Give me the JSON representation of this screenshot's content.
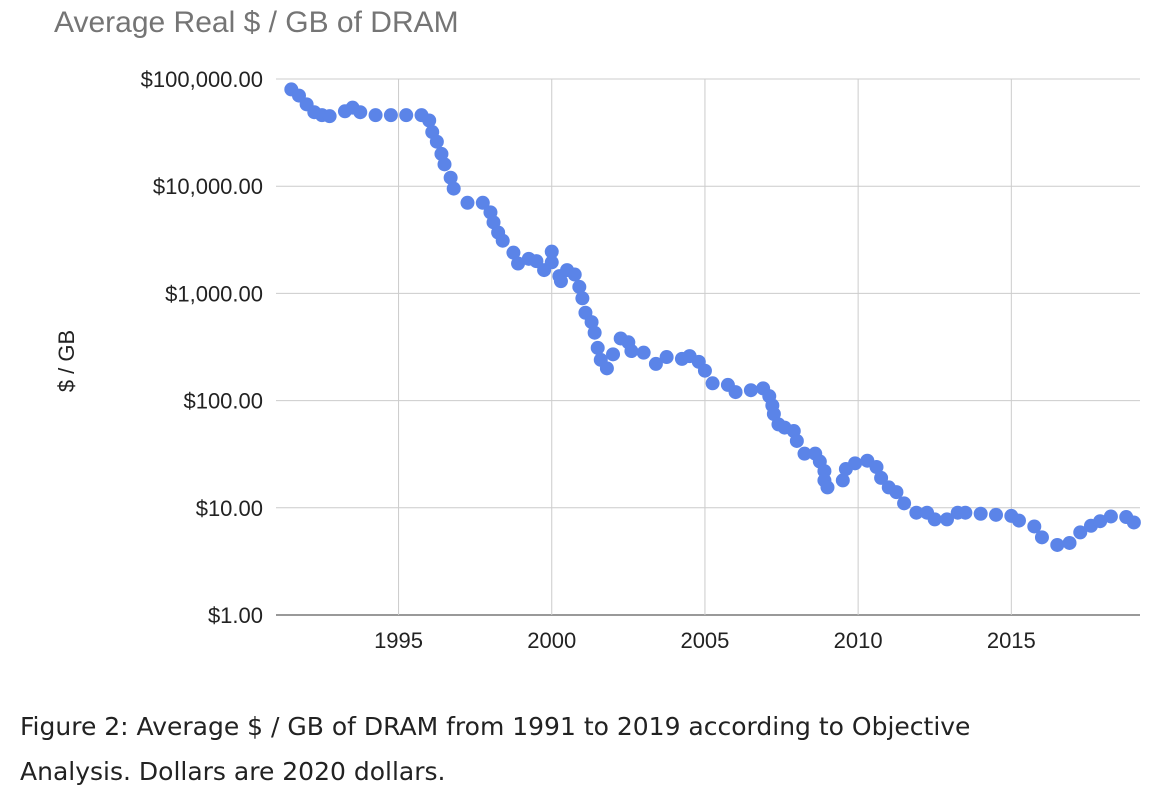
{
  "chart_data": {
    "type": "scatter",
    "title": "Average Real $ / GB of DRAM",
    "xlabel": "",
    "ylabel": "$ / GB",
    "y_scale": "log",
    "xlim": [
      1991.0,
      2019.2
    ],
    "ylim": [
      1,
      100000
    ],
    "x_ticks": [
      1995,
      2000,
      2005,
      2010,
      2015
    ],
    "x_tick_labels": [
      "1995",
      "2000",
      "2005",
      "2010",
      "2015"
    ],
    "y_ticks": [
      1,
      10,
      100,
      1000,
      10000,
      100000
    ],
    "y_tick_labels": [
      "$1.00",
      "$10.00",
      "$100.00",
      "$1,000.00",
      "$10,000.00",
      "$100,000.00"
    ],
    "grid": true,
    "legend": "none",
    "series": [
      {
        "color": "#5b84e8",
        "points": [
          [
            1991.5,
            80000
          ],
          [
            1991.75,
            70000
          ],
          [
            1992.0,
            58000
          ],
          [
            1992.25,
            49000
          ],
          [
            1992.5,
            46000
          ],
          [
            1992.75,
            45000
          ],
          [
            1993.25,
            50000
          ],
          [
            1993.5,
            54000
          ],
          [
            1993.75,
            49000
          ],
          [
            1994.25,
            46000
          ],
          [
            1994.75,
            46000
          ],
          [
            1995.25,
            46000
          ],
          [
            1995.75,
            46000
          ],
          [
            1996.0,
            41000
          ],
          [
            1996.1,
            32000
          ],
          [
            1996.25,
            26000
          ],
          [
            1996.4,
            20000
          ],
          [
            1996.5,
            16000
          ],
          [
            1996.7,
            12000
          ],
          [
            1996.8,
            9500
          ],
          [
            1997.25,
            7000
          ],
          [
            1997.75,
            7000
          ],
          [
            1998.0,
            5700
          ],
          [
            1998.1,
            4600
          ],
          [
            1998.25,
            3700
          ],
          [
            1998.4,
            3100
          ],
          [
            1998.75,
            2400
          ],
          [
            1998.9,
            1900
          ],
          [
            1999.25,
            2100
          ],
          [
            1999.5,
            2000
          ],
          [
            1999.75,
            1650
          ],
          [
            2000.0,
            1950
          ],
          [
            2000.0,
            2450
          ],
          [
            2000.25,
            1450
          ],
          [
            2000.3,
            1300
          ],
          [
            2000.5,
            1650
          ],
          [
            2000.75,
            1500
          ],
          [
            2000.9,
            1150
          ],
          [
            2001.0,
            900
          ],
          [
            2001.1,
            660
          ],
          [
            2001.3,
            540
          ],
          [
            2001.4,
            430
          ],
          [
            2001.5,
            310
          ],
          [
            2001.6,
            240
          ],
          [
            2001.8,
            200
          ],
          [
            2002.0,
            270
          ],
          [
            2002.25,
            380
          ],
          [
            2002.5,
            350
          ],
          [
            2002.6,
            290
          ],
          [
            2003.0,
            280
          ],
          [
            2003.4,
            220
          ],
          [
            2003.75,
            255
          ],
          [
            2004.25,
            245
          ],
          [
            2004.5,
            260
          ],
          [
            2004.8,
            230
          ],
          [
            2005.0,
            190
          ],
          [
            2005.25,
            145
          ],
          [
            2005.75,
            140
          ],
          [
            2006.0,
            120
          ],
          [
            2006.5,
            125
          ],
          [
            2006.9,
            130
          ],
          [
            2007.1,
            110
          ],
          [
            2007.2,
            90
          ],
          [
            2007.25,
            75
          ],
          [
            2007.4,
            60
          ],
          [
            2007.6,
            56
          ],
          [
            2007.9,
            52
          ],
          [
            2008.0,
            42
          ],
          [
            2008.25,
            32
          ],
          [
            2008.6,
            32
          ],
          [
            2008.75,
            27
          ],
          [
            2008.9,
            22
          ],
          [
            2008.9,
            18
          ],
          [
            2009.0,
            15.5
          ],
          [
            2009.5,
            18
          ],
          [
            2009.6,
            23
          ],
          [
            2009.9,
            26
          ],
          [
            2010.3,
            27.5
          ],
          [
            2010.6,
            24
          ],
          [
            2010.75,
            19
          ],
          [
            2011.0,
            15.5
          ],
          [
            2011.25,
            14
          ],
          [
            2011.5,
            11
          ],
          [
            2011.9,
            9
          ],
          [
            2012.25,
            9
          ],
          [
            2012.5,
            7.8
          ],
          [
            2012.9,
            7.8
          ],
          [
            2013.25,
            9
          ],
          [
            2013.5,
            9
          ],
          [
            2014.0,
            8.8
          ],
          [
            2014.5,
            8.6
          ],
          [
            2015.0,
            8.4
          ],
          [
            2015.25,
            7.6
          ],
          [
            2015.75,
            6.7
          ],
          [
            2016.0,
            5.3
          ],
          [
            2016.5,
            4.5
          ],
          [
            2016.9,
            4.7
          ],
          [
            2017.25,
            5.9
          ],
          [
            2017.6,
            6.8
          ],
          [
            2017.9,
            7.5
          ],
          [
            2018.25,
            8.3
          ],
          [
            2018.75,
            8.2
          ],
          [
            2019.0,
            7.3
          ]
        ]
      }
    ]
  },
  "caption": "Figure 2: Average $ / GB of DRAM from 1991 to 2019 according to Objective Analysis. Dollars are 2020 dollars."
}
